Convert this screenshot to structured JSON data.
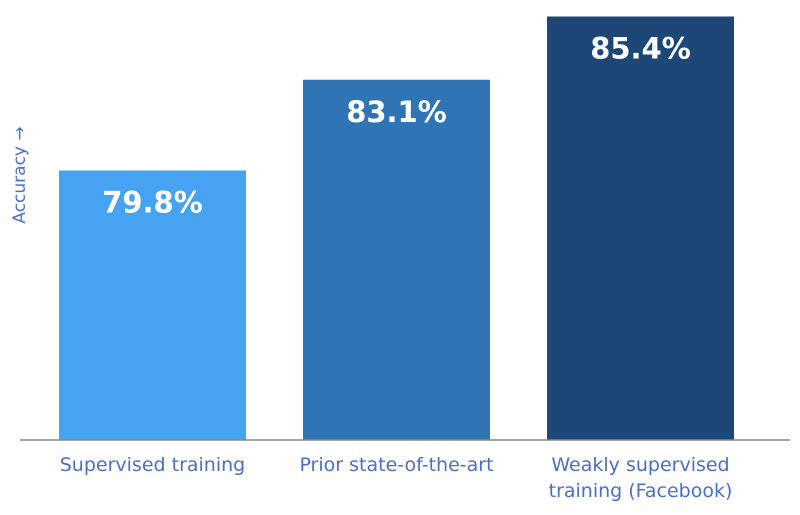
{
  "chart_data": {
    "type": "bar",
    "y_label": "Accuracy →",
    "categories": [
      "Supervised training",
      "Prior state-of-the-art",
      "Weakly supervised training (Facebook)"
    ],
    "values": [
      79.8,
      83.1,
      85.4
    ],
    "value_labels": [
      "79.8%",
      "83.1%",
      "85.4%"
    ],
    "colors": [
      "#45a3f2",
      "#2f75b5",
      "#1c4777"
    ],
    "ylim": [
      70,
      86
    ]
  }
}
